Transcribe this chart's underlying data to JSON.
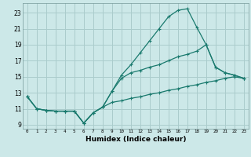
{
  "xlabel": "Humidex (Indice chaleur)",
  "background_color": "#cce8e8",
  "grid_color": "#aacccc",
  "line_color": "#1a7a6e",
  "xlim": [
    -0.5,
    23.5
  ],
  "ylim": [
    8.5,
    24.2
  ],
  "yticks": [
    9,
    11,
    13,
    15,
    17,
    19,
    21,
    23
  ],
  "xticks": [
    0,
    1,
    2,
    3,
    4,
    5,
    6,
    7,
    8,
    9,
    10,
    11,
    12,
    13,
    14,
    15,
    16,
    17,
    18,
    19,
    20,
    21,
    22,
    23
  ],
  "series1": [
    12.5,
    11.0,
    10.8,
    10.7,
    10.7,
    10.7,
    9.2,
    10.5,
    11.2,
    13.2,
    15.2,
    16.5,
    18.0,
    19.5,
    21.0,
    22.5,
    23.3,
    23.5,
    21.2,
    19.0,
    16.2,
    15.5,
    15.2,
    14.8
  ],
  "series2": [
    12.5,
    11.0,
    10.8,
    10.7,
    10.7,
    10.7,
    9.2,
    10.5,
    11.2,
    13.2,
    14.8,
    15.5,
    15.8,
    16.2,
    16.5,
    17.0,
    17.5,
    17.8,
    18.2,
    19.0,
    16.2,
    15.5,
    15.2,
    14.8
  ],
  "series3": [
    12.5,
    11.0,
    10.8,
    10.7,
    10.7,
    10.7,
    9.2,
    10.5,
    11.2,
    11.8,
    12.0,
    12.3,
    12.5,
    12.8,
    13.0,
    13.3,
    13.5,
    13.8,
    14.0,
    14.3,
    14.5,
    14.8,
    15.0,
    14.8
  ]
}
